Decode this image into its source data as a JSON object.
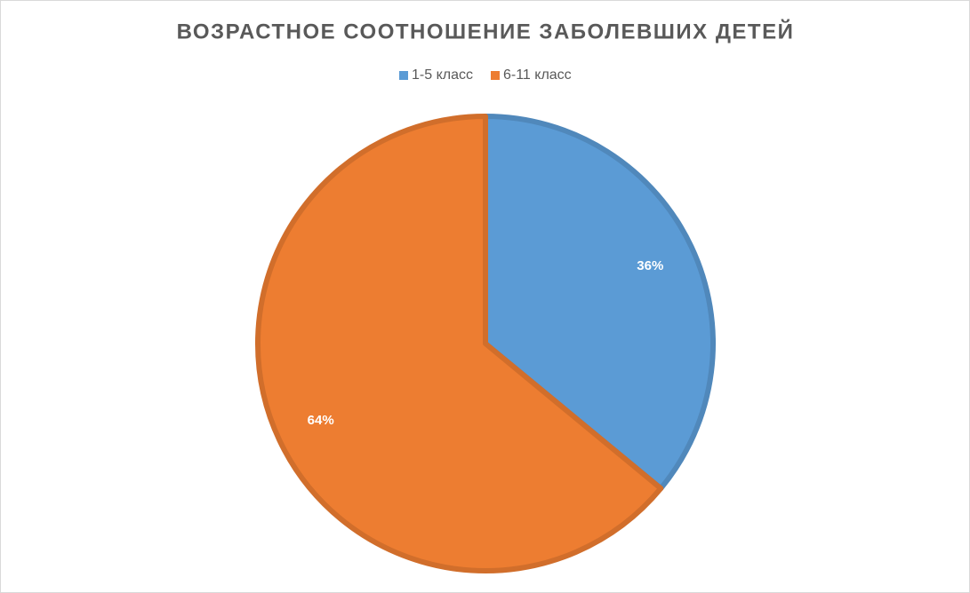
{
  "chart_data": {
    "type": "pie",
    "title": "ВОЗРАСТНОЕ СООТНОШЕНИЕ ЗАБОЛЕВШИХ ДЕТЕЙ",
    "categories": [
      "1-5 класс",
      "6-11 класс"
    ],
    "values": [
      36,
      64
    ],
    "value_labels": [
      "36%",
      "64%"
    ],
    "colors": [
      "#5b9bd5",
      "#ed7d31"
    ],
    "legend": "top"
  }
}
